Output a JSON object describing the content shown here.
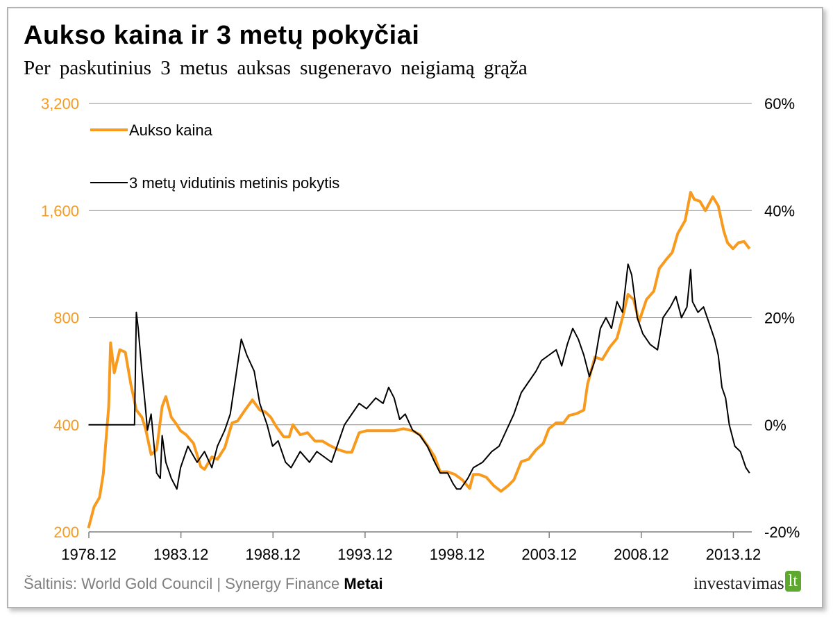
{
  "title": "Aukso kaina ir 3 metų pokyčiai",
  "subtitle": "Per paskutinius 3 metus auksas sugeneravo neigiamą grąža",
  "source": {
    "text": "Šaltinis: World Gold Council | Synergy Finance",
    "bold": "Metai"
  },
  "brand": {
    "name": "investavimas",
    "tag": "lt"
  },
  "colors": {
    "gold": "#f79a1e",
    "change": "#000000",
    "grid": "#8c8c8c"
  },
  "chart_data": {
    "type": "line",
    "title": "Aukso kaina ir 3 metų pokyčiai",
    "x_ticks": [
      "1978.12",
      "1983.12",
      "1988.12",
      "1993.12",
      "1998.12",
      "2003.12",
      "2008.12",
      "2013.12"
    ],
    "x_range": [
      1978.92,
      2014.92
    ],
    "left_axis": {
      "scale": "log2",
      "range": [
        200,
        3200
      ],
      "ticks": [
        "200",
        "400",
        "800",
        "1,600",
        "3,200"
      ],
      "tick_values": [
        200,
        400,
        800,
        1600,
        3200
      ]
    },
    "right_axis": {
      "range": [
        -0.2,
        0.6
      ],
      "ticks": [
        "-20%",
        "0%",
        "20%",
        "40%",
        "60%"
      ],
      "tick_values": [
        -0.2,
        0,
        0.2,
        0.4,
        0.6
      ]
    },
    "grid": "horizontal",
    "legend_position": "top-left",
    "series": [
      {
        "name": "Aukso kaina",
        "axis": "left",
        "points": [
          [
            1978.9,
            205
          ],
          [
            1979.2,
            235
          ],
          [
            1979.5,
            250
          ],
          [
            1979.7,
            290
          ],
          [
            1980.0,
            450
          ],
          [
            1980.1,
            680
          ],
          [
            1980.3,
            560
          ],
          [
            1980.6,
            650
          ],
          [
            1980.9,
            640
          ],
          [
            1981.2,
            520
          ],
          [
            1981.5,
            440
          ],
          [
            1981.8,
            420
          ],
          [
            1982.0,
            390
          ],
          [
            1982.3,
            330
          ],
          [
            1982.6,
            340
          ],
          [
            1982.9,
            450
          ],
          [
            1983.1,
            480
          ],
          [
            1983.4,
            420
          ],
          [
            1983.7,
            400
          ],
          [
            1983.9,
            385
          ],
          [
            1984.2,
            375
          ],
          [
            1984.6,
            355
          ],
          [
            1985.0,
            305
          ],
          [
            1985.2,
            300
          ],
          [
            1985.6,
            325
          ],
          [
            1985.9,
            320
          ],
          [
            1986.3,
            345
          ],
          [
            1986.7,
            405
          ],
          [
            1987.0,
            410
          ],
          [
            1987.4,
            440
          ],
          [
            1987.8,
            470
          ],
          [
            1988.2,
            440
          ],
          [
            1988.5,
            435
          ],
          [
            1988.8,
            420
          ],
          [
            1989.1,
            395
          ],
          [
            1989.5,
            370
          ],
          [
            1989.8,
            370
          ],
          [
            1990.0,
            400
          ],
          [
            1990.4,
            375
          ],
          [
            1990.8,
            380
          ],
          [
            1991.2,
            360
          ],
          [
            1991.6,
            360
          ],
          [
            1992.0,
            350
          ],
          [
            1992.5,
            340
          ],
          [
            1992.9,
            335
          ],
          [
            1993.2,
            335
          ],
          [
            1993.6,
            380
          ],
          [
            1994.0,
            385
          ],
          [
            1994.5,
            385
          ],
          [
            1995.0,
            385
          ],
          [
            1995.5,
            385
          ],
          [
            1996.0,
            390
          ],
          [
            1996.5,
            385
          ],
          [
            1996.9,
            375
          ],
          [
            1997.3,
            350
          ],
          [
            1997.7,
            325
          ],
          [
            1998.0,
            295
          ],
          [
            1998.4,
            295
          ],
          [
            1998.8,
            290
          ],
          [
            1999.2,
            280
          ],
          [
            1999.6,
            265
          ],
          [
            1999.8,
            290
          ],
          [
            2000.1,
            290
          ],
          [
            2000.5,
            285
          ],
          [
            2000.9,
            270
          ],
          [
            2001.3,
            260
          ],
          [
            2001.7,
            270
          ],
          [
            2002.0,
            280
          ],
          [
            2002.4,
            315
          ],
          [
            2002.8,
            320
          ],
          [
            2003.2,
            340
          ],
          [
            2003.6,
            355
          ],
          [
            2003.9,
            390
          ],
          [
            2004.3,
            405
          ],
          [
            2004.7,
            405
          ],
          [
            2005.0,
            425
          ],
          [
            2005.4,
            430
          ],
          [
            2005.8,
            440
          ],
          [
            2006.0,
            520
          ],
          [
            2006.4,
            620
          ],
          [
            2006.8,
            610
          ],
          [
            2007.2,
            660
          ],
          [
            2007.6,
            700
          ],
          [
            2007.9,
            800
          ],
          [
            2008.2,
            930
          ],
          [
            2008.5,
            900
          ],
          [
            2008.8,
            780
          ],
          [
            2009.2,
            900
          ],
          [
            2009.6,
            950
          ],
          [
            2009.9,
            1100
          ],
          [
            2010.3,
            1170
          ],
          [
            2010.6,
            1220
          ],
          [
            2010.9,
            1380
          ],
          [
            2011.3,
            1500
          ],
          [
            2011.6,
            1800
          ],
          [
            2011.8,
            1720
          ],
          [
            2012.1,
            1700
          ],
          [
            2012.4,
            1600
          ],
          [
            2012.8,
            1750
          ],
          [
            2013.1,
            1650
          ],
          [
            2013.4,
            1400
          ],
          [
            2013.6,
            1300
          ],
          [
            2013.9,
            1250
          ],
          [
            2014.2,
            1300
          ],
          [
            2014.5,
            1310
          ],
          [
            2014.8,
            1250
          ]
        ]
      },
      {
        "name": "3 metų vidutinis metinis pokytis",
        "axis": "right",
        "points": [
          [
            1978.9,
            0.0
          ],
          [
            1981.4,
            0.0
          ],
          [
            1981.5,
            0.21
          ],
          [
            1981.6,
            0.18
          ],
          [
            1981.8,
            0.1
          ],
          [
            1982.0,
            0.03
          ],
          [
            1982.1,
            -0.01
          ],
          [
            1982.3,
            0.02
          ],
          [
            1982.6,
            -0.09
          ],
          [
            1982.8,
            -0.1
          ],
          [
            1982.9,
            -0.02
          ],
          [
            1983.1,
            -0.07
          ],
          [
            1983.4,
            -0.1
          ],
          [
            1983.7,
            -0.12
          ],
          [
            1983.9,
            -0.08
          ],
          [
            1984.3,
            -0.04
          ],
          [
            1984.8,
            -0.07
          ],
          [
            1985.2,
            -0.05
          ],
          [
            1985.6,
            -0.08
          ],
          [
            1985.9,
            -0.04
          ],
          [
            1986.3,
            -0.01
          ],
          [
            1986.6,
            0.02
          ],
          [
            1986.9,
            0.09
          ],
          [
            1987.2,
            0.16
          ],
          [
            1987.5,
            0.13
          ],
          [
            1987.9,
            0.1
          ],
          [
            1988.2,
            0.04
          ],
          [
            1988.6,
            0.0
          ],
          [
            1988.9,
            -0.04
          ],
          [
            1989.2,
            -0.03
          ],
          [
            1989.6,
            -0.07
          ],
          [
            1989.9,
            -0.08
          ],
          [
            1990.4,
            -0.05
          ],
          [
            1990.9,
            -0.07
          ],
          [
            1991.3,
            -0.05
          ],
          [
            1991.7,
            -0.06
          ],
          [
            1992.1,
            -0.07
          ],
          [
            1992.5,
            -0.03
          ],
          [
            1992.8,
            0.0
          ],
          [
            1993.2,
            0.02
          ],
          [
            1993.6,
            0.04
          ],
          [
            1994.0,
            0.03
          ],
          [
            1994.5,
            0.05
          ],
          [
            1994.9,
            0.04
          ],
          [
            1995.2,
            0.07
          ],
          [
            1995.5,
            0.05
          ],
          [
            1995.8,
            0.01
          ],
          [
            1996.1,
            0.02
          ],
          [
            1996.5,
            -0.01
          ],
          [
            1996.9,
            -0.02
          ],
          [
            1997.3,
            -0.04
          ],
          [
            1997.7,
            -0.07
          ],
          [
            1998.0,
            -0.09
          ],
          [
            1998.4,
            -0.09
          ],
          [
            1998.7,
            -0.11
          ],
          [
            1998.9,
            -0.12
          ],
          [
            1999.1,
            -0.12
          ],
          [
            1999.5,
            -0.1
          ],
          [
            1999.8,
            -0.08
          ],
          [
            2000.3,
            -0.07
          ],
          [
            2000.8,
            -0.05
          ],
          [
            2001.2,
            -0.04
          ],
          [
            2001.6,
            -0.01
          ],
          [
            2002.0,
            0.02
          ],
          [
            2002.4,
            0.06
          ],
          [
            2002.8,
            0.08
          ],
          [
            2003.2,
            0.1
          ],
          [
            2003.5,
            0.12
          ],
          [
            2003.9,
            0.13
          ],
          [
            2004.3,
            0.14
          ],
          [
            2004.6,
            0.11
          ],
          [
            2004.9,
            0.15
          ],
          [
            2005.2,
            0.18
          ],
          [
            2005.5,
            0.16
          ],
          [
            2005.8,
            0.13
          ],
          [
            2006.1,
            0.09
          ],
          [
            2006.4,
            0.12
          ],
          [
            2006.7,
            0.18
          ],
          [
            2007.0,
            0.2
          ],
          [
            2007.3,
            0.18
          ],
          [
            2007.6,
            0.23
          ],
          [
            2007.9,
            0.21
          ],
          [
            2008.2,
            0.3
          ],
          [
            2008.4,
            0.28
          ],
          [
            2008.7,
            0.2
          ],
          [
            2009.0,
            0.17
          ],
          [
            2009.4,
            0.15
          ],
          [
            2009.8,
            0.14
          ],
          [
            2010.1,
            0.2
          ],
          [
            2010.5,
            0.22
          ],
          [
            2010.8,
            0.24
          ],
          [
            2011.1,
            0.2
          ],
          [
            2011.4,
            0.22
          ],
          [
            2011.6,
            0.29
          ],
          [
            2011.7,
            0.23
          ],
          [
            2012.0,
            0.21
          ],
          [
            2012.3,
            0.22
          ],
          [
            2012.6,
            0.19
          ],
          [
            2012.9,
            0.16
          ],
          [
            2013.1,
            0.13
          ],
          [
            2013.3,
            0.07
          ],
          [
            2013.5,
            0.05
          ],
          [
            2013.7,
            0.0
          ],
          [
            2014.0,
            -0.04
          ],
          [
            2014.3,
            -0.05
          ],
          [
            2014.6,
            -0.08
          ],
          [
            2014.8,
            -0.09
          ]
        ]
      }
    ]
  }
}
